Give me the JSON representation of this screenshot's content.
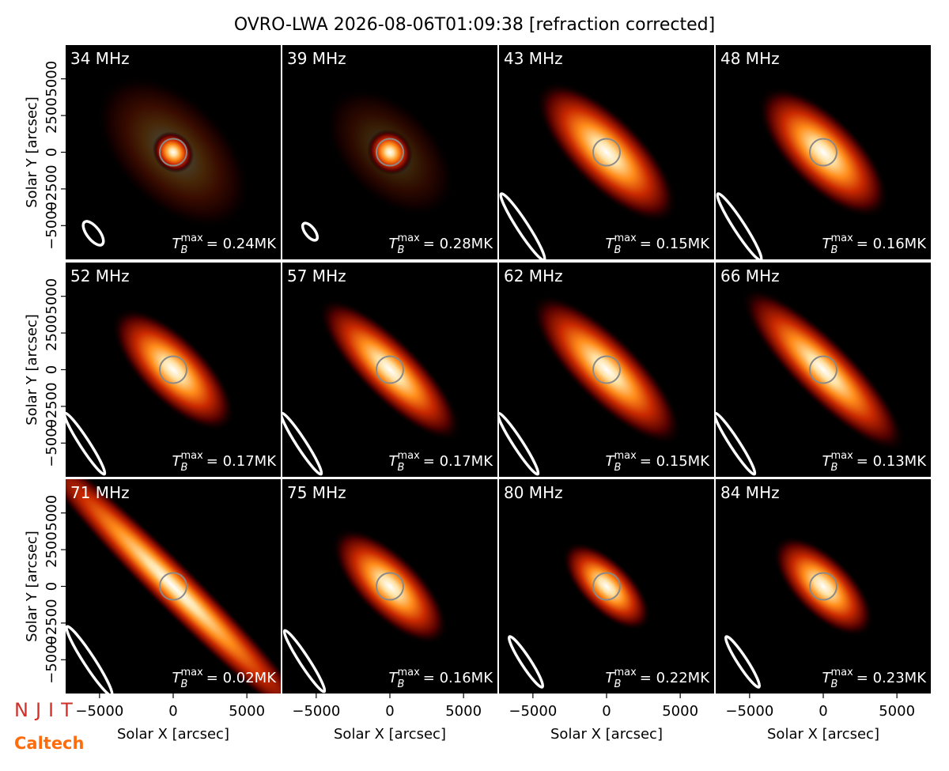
{
  "title": "OVRO-LWA 2026-08-06T01:09:38 [refraction corrected]",
  "logos": [
    "NJIT",
    "Caltech"
  ],
  "chart_data": [
    {
      "type": "image",
      "title": "34 MHz",
      "annotation": {
        "symbol": "T",
        "sub": "B",
        "sup": "max",
        "text": "= 0.24MK"
      },
      "xlim": [
        -7300,
        7300
      ],
      "ylim": [
        -7300,
        7300
      ],
      "ylabel": "Solar Y [arcsec]",
      "yticks": [
        {
          "value": -5000,
          "label": "−5000"
        },
        {
          "value": -2500,
          "label": "−2500"
        },
        0,
        2500,
        5000
      ]
    },
    {
      "type": "image",
      "title": "39 MHz",
      "annotation": {
        "symbol": "T",
        "sub": "B",
        "sup": "max",
        "text": "= 0.28MK"
      },
      "xlim": [
        -7300,
        7300
      ],
      "ylim": [
        -7300,
        7300
      ]
    },
    {
      "type": "image",
      "title": "43 MHz",
      "annotation": {
        "symbol": "T",
        "sub": "B",
        "sup": "max",
        "text": "= 0.15MK"
      },
      "xlim": [
        -7300,
        7300
      ],
      "ylim": [
        -7300,
        7300
      ]
    },
    {
      "type": "image",
      "title": "48 MHz",
      "annotation": {
        "symbol": "T",
        "sub": "B",
        "sup": "max",
        "text": "= 0.16MK"
      },
      "xlim": [
        -7300,
        7300
      ],
      "ylim": [
        -7300,
        7300
      ]
    },
    {
      "type": "image",
      "title": "52 MHz",
      "annotation": {
        "symbol": "T",
        "sub": "B",
        "sup": "max",
        "text": "= 0.17MK"
      },
      "xlim": [
        -7300,
        7300
      ],
      "ylim": [
        -7300,
        7300
      ],
      "ylabel": "Solar Y [arcsec]",
      "yticks": [
        {
          "value": -5000,
          "label": "−5000"
        },
        {
          "value": -2500,
          "label": "−2500"
        },
        0,
        2500,
        5000
      ]
    },
    {
      "type": "image",
      "title": "57 MHz",
      "annotation": {
        "symbol": "T",
        "sub": "B",
        "sup": "max",
        "text": "= 0.17MK"
      },
      "xlim": [
        -7300,
        7300
      ],
      "ylim": [
        -7300,
        7300
      ]
    },
    {
      "type": "image",
      "title": "62 MHz",
      "annotation": {
        "symbol": "T",
        "sub": "B",
        "sup": "max",
        "text": "= 0.15MK"
      },
      "xlim": [
        -7300,
        7300
      ],
      "ylim": [
        -7300,
        7300
      ]
    },
    {
      "type": "image",
      "title": "66 MHz",
      "annotation": {
        "symbol": "T",
        "sub": "B",
        "sup": "max",
        "text": "= 0.13MK"
      },
      "xlim": [
        -7300,
        7300
      ],
      "ylim": [
        -7300,
        7300
      ]
    },
    {
      "type": "image",
      "title": "71 MHz",
      "annotation": {
        "symbol": "T",
        "sub": "B",
        "sup": "max",
        "text": "= 0.02MK"
      },
      "xlim": [
        -7300,
        7300
      ],
      "ylim": [
        -7300,
        7300
      ],
      "xlabel": "Solar X [arcsec]",
      "xticks": [
        {
          "value": -5000,
          "label": "−5000"
        },
        0,
        5000
      ],
      "ylabel": "Solar Y [arcsec]",
      "yticks": [
        {
          "value": -5000,
          "label": "−5000"
        },
        {
          "value": -2500,
          "label": "−2500"
        },
        0,
        2500,
        5000
      ]
    },
    {
      "type": "image",
      "title": "75 MHz",
      "annotation": {
        "symbol": "T",
        "sub": "B",
        "sup": "max",
        "text": "= 0.16MK"
      },
      "xlim": [
        -7300,
        7300
      ],
      "ylim": [
        -7300,
        7300
      ],
      "xlabel": "Solar X [arcsec]",
      "xticks": [
        {
          "value": -5000,
          "label": "−5000"
        },
        0,
        5000
      ]
    },
    {
      "type": "image",
      "title": "80 MHz",
      "annotation": {
        "symbol": "T",
        "sub": "B",
        "sup": "max",
        "text": "= 0.22MK"
      },
      "xlim": [
        -7300,
        7300
      ],
      "ylim": [
        -7300,
        7300
      ],
      "xlabel": "Solar X [arcsec]",
      "xticks": [
        {
          "value": -5000,
          "label": "−5000"
        },
        0,
        5000
      ]
    },
    {
      "type": "image",
      "title": "84 MHz",
      "annotation": {
        "symbol": "T",
        "sub": "B",
        "sup": "max",
        "text": "= 0.23MK"
      },
      "xlim": [
        -7300,
        7300
      ],
      "ylim": [
        -7300,
        7300
      ],
      "xlabel": "Solar X [arcsec]",
      "xticks": [
        {
          "value": -5000,
          "label": "−5000"
        },
        0,
        5000
      ]
    }
  ]
}
